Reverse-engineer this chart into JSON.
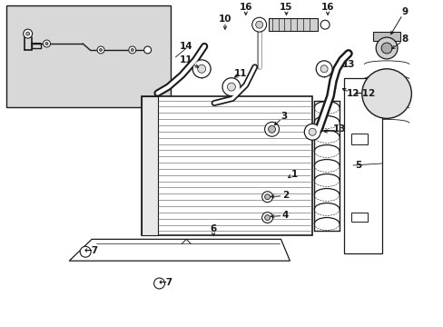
{
  "bg": "#ffffff",
  "lc": "#1a1a1a",
  "inset_bg": "#e0e0e0",
  "fig_w": 4.89,
  "fig_h": 3.6,
  "dpi": 100
}
